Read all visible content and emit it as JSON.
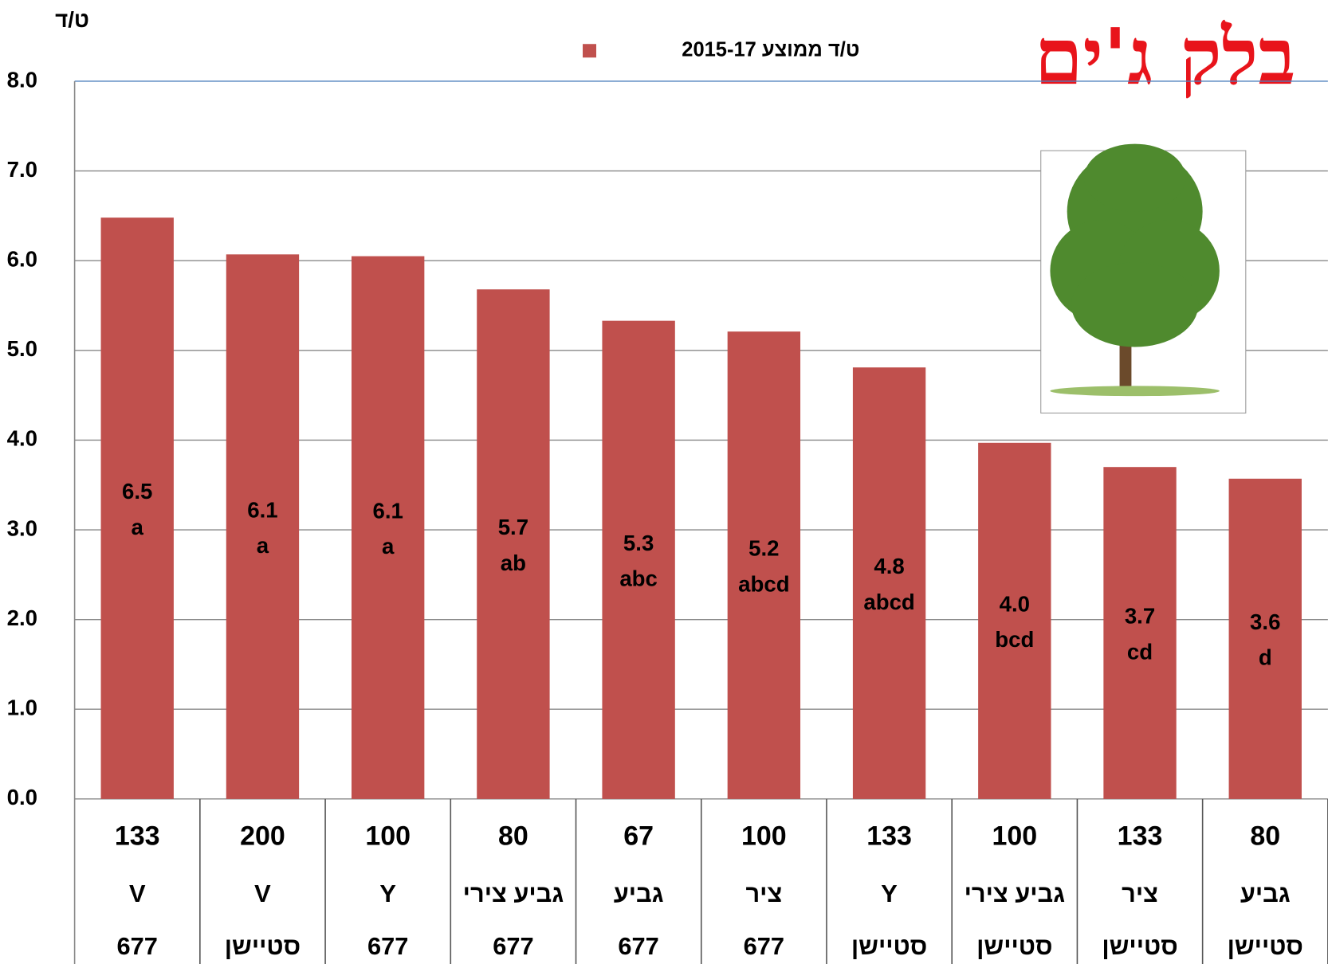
{
  "chart_data": {
    "type": "bar",
    "y_unit": "ט/ד",
    "legend": "ט/ד ממוצע 2015-17",
    "brand": "בלק ג'ים",
    "categories": [
      [
        "133",
        "V",
        "677"
      ],
      [
        "200",
        "V",
        "סטיישן"
      ],
      [
        "100",
        "Y",
        "677"
      ],
      [
        "80",
        "גביע צירי",
        "677"
      ],
      [
        "67",
        "גביע",
        "677"
      ],
      [
        "100",
        "ציר",
        "677"
      ],
      [
        "133",
        "Y",
        "סטיישן"
      ],
      [
        "100",
        "גביע צירי",
        "סטיישן"
      ],
      [
        "133",
        "ציר",
        "סטיישן"
      ],
      [
        "80",
        "גביע",
        "סטיישן"
      ]
    ],
    "series": [
      {
        "name": "2015-17",
        "color": "#c0504d",
        "values": [
          6.48,
          6.07,
          6.05,
          5.68,
          5.33,
          5.21,
          4.81,
          3.97,
          3.7,
          3.57
        ],
        "value_labels": [
          "6.5",
          "6.1",
          "6.1",
          "5.7",
          "5.3",
          "5.2",
          "4.8",
          "4.0",
          "3.7",
          "3.6"
        ],
        "letters": [
          "a",
          "a",
          "a",
          "ab",
          "abc",
          "abcd",
          "abcd",
          "bcd",
          "cd",
          "d"
        ]
      }
    ],
    "ylim": [
      0,
      8
    ],
    "yticks": [
      {
        "value": 0,
        "label": "0.0"
      },
      {
        "value": 1,
        "label": "1.0"
      },
      {
        "value": 2,
        "label": "2.0"
      },
      {
        "value": 3,
        "label": "3.0"
      },
      {
        "value": 4,
        "label": "4.0"
      },
      {
        "value": 5,
        "label": "5.0"
      },
      {
        "value": 6,
        "label": "6.0"
      },
      {
        "value": 7,
        "label": "7.0"
      },
      {
        "value": 8,
        "label": "8.0"
      }
    ],
    "grid": true
  }
}
